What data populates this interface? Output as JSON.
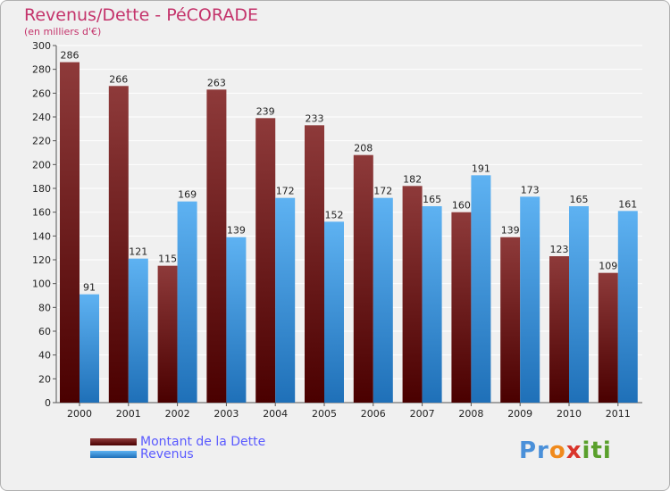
{
  "title": "Revenus/Dette - PéCORADE",
  "subtitle": "(en milliers d'€)",
  "logo_text": "Proxiti",
  "colors": {
    "dette": "#8b1a1a",
    "revenus": "#3d9be0",
    "title": "#c4336b",
    "legend_text": "#5a5aff"
  },
  "chart_data": {
    "type": "bar",
    "categories": [
      "2000",
      "2001",
      "2002",
      "2003",
      "2004",
      "2005",
      "2006",
      "2007",
      "2008",
      "2009",
      "2010",
      "2011"
    ],
    "series": [
      {
        "name": "Montant de la Dette",
        "values": [
          286,
          266,
          115,
          263,
          239,
          233,
          208,
          182,
          160,
          139,
          123,
          109
        ]
      },
      {
        "name": "Revenus",
        "values": [
          91,
          121,
          169,
          139,
          172,
          152,
          172,
          165,
          191,
          173,
          165,
          161
        ]
      }
    ],
    "ylim": [
      0,
      300
    ],
    "yticks": [
      0,
      20,
      40,
      60,
      80,
      100,
      120,
      140,
      160,
      180,
      200,
      220,
      240,
      260,
      280,
      300
    ],
    "grid": true,
    "legend": "bottom-left"
  }
}
